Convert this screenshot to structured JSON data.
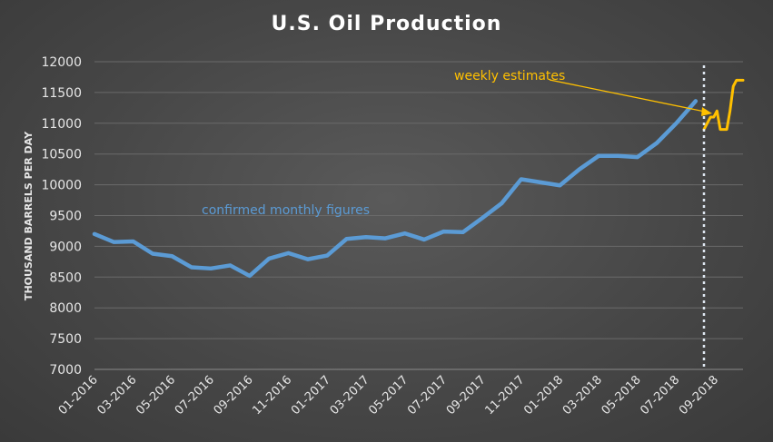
{
  "chart_data": {
    "type": "line",
    "title": "U.S. Oil Production",
    "xlabel": "",
    "ylabel": "THOUSAND BARRELS PER DAY",
    "ylim": [
      7000,
      12000
    ],
    "y_ticks": [
      7000,
      7500,
      8000,
      8500,
      9000,
      9500,
      10000,
      10500,
      11000,
      11500,
      12000
    ],
    "x_tick_labels": [
      "01-2016",
      "03-2016",
      "05-2016",
      "07-2016",
      "09-2016",
      "11-2016",
      "01-2017",
      "03-2017",
      "05-2017",
      "07-2017",
      "09-2017",
      "11-2017",
      "01-2018",
      "03-2018",
      "05-2018",
      "07-2018",
      "09-2018"
    ],
    "grid": true,
    "series": [
      {
        "name": "confirmed monthly figures",
        "color": "#5b9bd5",
        "x": [
          "01-2016",
          "02-2016",
          "03-2016",
          "04-2016",
          "05-2016",
          "06-2016",
          "07-2016",
          "08-2016",
          "09-2016",
          "10-2016",
          "11-2016",
          "12-2016",
          "01-2017",
          "02-2017",
          "03-2017",
          "04-2017",
          "05-2017",
          "06-2017",
          "07-2017",
          "08-2017",
          "09-2017",
          "10-2017",
          "11-2017",
          "12-2017",
          "01-2018",
          "02-2018",
          "03-2018",
          "04-2018",
          "05-2018",
          "06-2018",
          "07-2018",
          "08-2018"
        ],
        "values": [
          9200,
          9070,
          9080,
          8880,
          8840,
          8660,
          8640,
          8690,
          8520,
          8800,
          8890,
          8790,
          8850,
          9120,
          9150,
          9130,
          9210,
          9110,
          9240,
          9230,
          9460,
          9700,
          10090,
          10040,
          9990,
          10250,
          10470,
          10470,
          10450,
          10680,
          11000,
          11360
        ]
      },
      {
        "name": "weekly estimates",
        "color": "#ffc000",
        "x": [
          "08-2018",
          "08-2018",
          "08-2018",
          "08-2018",
          "09-2018",
          "09-2018",
          "09-2018",
          "09-2018",
          "09-2018",
          "10-2018",
          "10-2018",
          "10-2018",
          "10-2018"
        ],
        "values": [
          10900,
          11000,
          11100,
          11100,
          11200,
          10900,
          10900,
          10900,
          11200,
          11600,
          11700,
          11700,
          11700
        ]
      }
    ],
    "annotations": [
      {
        "text": "weekly estimates",
        "color": "#ffc000"
      },
      {
        "text": "confirmed monthly figures",
        "color": "#5b9bd5"
      }
    ]
  }
}
